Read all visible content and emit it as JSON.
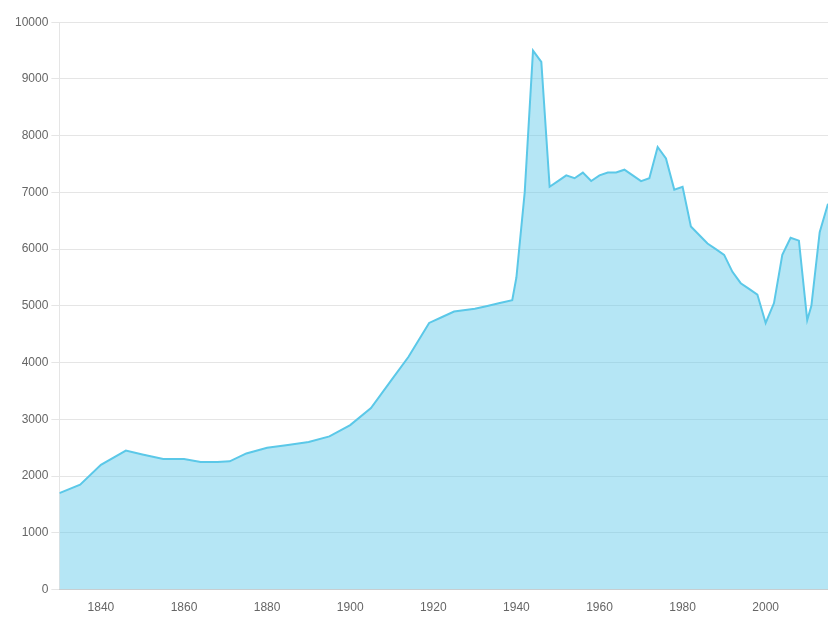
{
  "chart_data": {
    "type": "area",
    "x": [
      1830,
      1835,
      1840,
      1846,
      1850,
      1855,
      1860,
      1864,
      1868,
      1871,
      1875,
      1880,
      1885,
      1890,
      1895,
      1900,
      1905,
      1910,
      1914,
      1919,
      1922,
      1925,
      1930,
      1933,
      1936,
      1939,
      1940,
      1942,
      1944,
      1946,
      1948,
      1950,
      1952,
      1954,
      1956,
      1958,
      1960,
      1962,
      1964,
      1966,
      1968,
      1970,
      1972,
      1974,
      1976,
      1978,
      1980,
      1982,
      1984,
      1986,
      1988,
      1990,
      1992,
      1994,
      1996,
      1998,
      2000,
      2002,
      2004,
      2006,
      2008,
      2010,
      2011,
      2013,
      2015
    ],
    "values": [
      1700,
      1850,
      2200,
      2450,
      2380,
      2300,
      2300,
      2250,
      2250,
      2260,
      2400,
      2500,
      2550,
      2600,
      2700,
      2900,
      3200,
      3700,
      4100,
      4700,
      4800,
      4900,
      4950,
      5000,
      5050,
      5100,
      5500,
      7000,
      9500,
      9300,
      7100,
      7200,
      7300,
      7250,
      7350,
      7200,
      7300,
      7350,
      7350,
      7400,
      7300,
      7200,
      7250,
      7800,
      7600,
      7050,
      7100,
      6400,
      6250,
      6100,
      6000,
      5900,
      5600,
      5400,
      5300,
      5200,
      4700,
      5050,
      5900,
      6200,
      6150,
      4750,
      5000,
      6300,
      6800
    ],
    "color": "#5BC8E8",
    "xlim": [
      1830,
      2015
    ],
    "xticks": [
      1840,
      1860,
      1880,
      1900,
      1920,
      1940,
      1960,
      1980,
      2000
    ],
    "ylim": [
      0,
      10000
    ],
    "yticks": [
      0,
      1000,
      2000,
      3000,
      4000,
      5000,
      6000,
      7000,
      8000,
      9000,
      10000
    ],
    "grid": "y"
  }
}
